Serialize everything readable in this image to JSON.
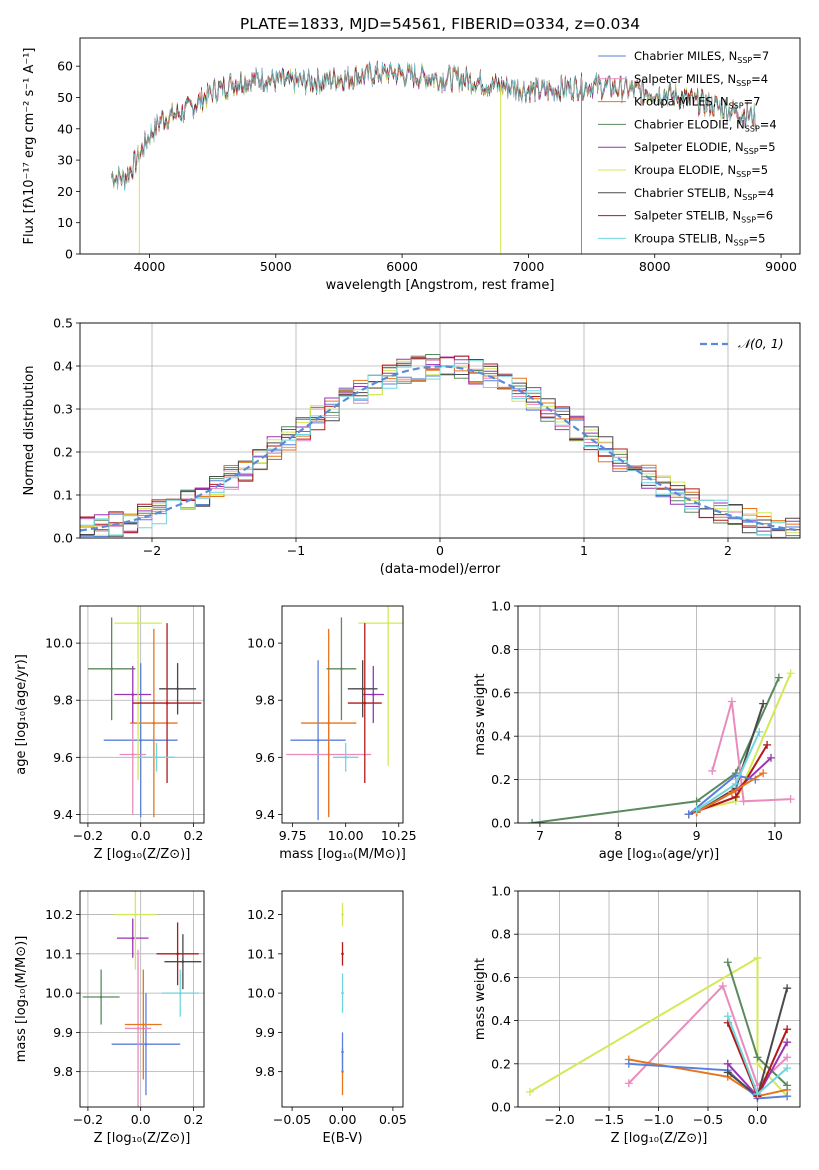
{
  "title": "PLATE=1833, MJD=54561, FIBERID=0334, z=0.034",
  "colors": {
    "Chabrier MILES": "#5b80db",
    "Salpeter MILES": "#e98bbd",
    "Kroupa MILES": "#e6751d",
    "Chabrier ELODIE": "#5b8a5e",
    "Salpeter ELODIE": "#9b33b5",
    "Kroupa ELODIE": "#d6e855",
    "Chabrier STELIB": "#4a4a4a",
    "Salpeter STELIB": "#b21a1a",
    "Kroupa STELIB": "#6fd6dd",
    "normal_curve": "#5b8bd8",
    "grid": "#b0b0b0"
  },
  "chart_data": [
    {
      "id": "spectrum",
      "type": "line",
      "xlabel": "wavelength [Angstrom, rest frame]",
      "ylabel": "Flux [fλ10⁻¹⁷ erg cm⁻² s⁻¹ A⁻¹]",
      "xlim": [
        3450,
        9150
      ],
      "ylim": [
        0,
        69
      ],
      "xticks": [
        "4000",
        "5000",
        "6000",
        "7000",
        "8000",
        "9000"
      ],
      "yticks": [
        "0",
        "10",
        "20",
        "30",
        "40",
        "50",
        "60"
      ],
      "legend": "top-right",
      "legend_entries": [
        {
          "name": "Chabrier MILES",
          "n": "7"
        },
        {
          "name": "Salpeter MILES",
          "n": "4"
        },
        {
          "name": "Kroupa MILES",
          "n": "7"
        },
        {
          "name": "Chabrier ELODIE",
          "n": "4"
        },
        {
          "name": "Salpeter ELODIE",
          "n": "5"
        },
        {
          "name": "Kroupa ELODIE",
          "n": "5"
        },
        {
          "name": "Chabrier STELIB",
          "n": "4"
        },
        {
          "name": "Salpeter STELIB",
          "n": "6"
        },
        {
          "name": "Kroupa STELIB",
          "n": "5"
        }
      ],
      "continuum": [
        [
          3700,
          25
        ],
        [
          3800,
          24
        ],
        [
          3900,
          30
        ],
        [
          4000,
          38
        ],
        [
          4100,
          43
        ],
        [
          4300,
          46
        ],
        [
          4500,
          52
        ],
        [
          4700,
          55
        ],
        [
          4900,
          56
        ],
        [
          5100,
          55
        ],
        [
          5300,
          55
        ],
        [
          5500,
          56
        ],
        [
          5700,
          57
        ],
        [
          5900,
          58
        ],
        [
          6100,
          57
        ],
        [
          6300,
          56
        ],
        [
          6500,
          56
        ],
        [
          6700,
          54
        ],
        [
          6900,
          53
        ],
        [
          7100,
          52
        ],
        [
          7300,
          53
        ],
        [
          7500,
          54
        ],
        [
          7700,
          53
        ],
        [
          7900,
          52
        ],
        [
          8100,
          51
        ],
        [
          8300,
          49
        ],
        [
          8500,
          47
        ],
        [
          8700,
          45
        ],
        [
          8800,
          44
        ]
      ],
      "drops": [
        {
          "series": "Kroupa ELODIE",
          "x": 3920,
          "to": 0
        },
        {
          "series": "Kroupa ELODIE",
          "x": 6780,
          "to": 0
        },
        {
          "series": "Kroupa MILES",
          "x": 7420,
          "to": 0
        }
      ],
      "grid": false
    },
    {
      "id": "residuals",
      "type": "bar",
      "xlabel": "(data-model)/error",
      "ylabel": "Normed distribution",
      "xlim": [
        -2.5,
        2.5
      ],
      "ylim": [
        0,
        0.5
      ],
      "xticks": [
        "−2",
        "−1",
        "0",
        "1",
        "2"
      ],
      "yticks": [
        "0.0",
        "0.1",
        "0.2",
        "0.3",
        "0.4",
        "0.5"
      ],
      "bin_width": 0.1,
      "legend_label": "𝒩(0, 1)",
      "grid": true
    },
    {
      "id": "age_vs_Z",
      "type": "scatter",
      "xlabel": "Z [log₁₀(Z/Z⊙)]",
      "ylabel": "age  [log₁₀(age/yr)]",
      "xlim": [
        -0.23,
        0.24
      ],
      "ylim": [
        9.37,
        10.13
      ],
      "xticks": [
        "−0.2",
        "0.0",
        "0.2"
      ],
      "yticks": [
        "9.4",
        "9.6",
        "9.8",
        "10.0"
      ],
      "points": [
        {
          "series": "Chabrier MILES",
          "x": 0.0,
          "xerr": 0.14,
          "y": 9.66,
          "yerr": 0.27
        },
        {
          "series": "Salpeter MILES",
          "x": -0.03,
          "xerr": 0.05,
          "y": 9.61,
          "yerr": 0.21
        },
        {
          "series": "Kroupa MILES",
          "x": 0.05,
          "xerr": 0.09,
          "y": 9.72,
          "yerr": 0.33
        },
        {
          "series": "Chabrier ELODIE",
          "x": -0.11,
          "xerr": 0.09,
          "y": 9.91,
          "yerr": 0.18
        },
        {
          "series": "Salpeter ELODIE",
          "x": -0.03,
          "xerr": 0.07,
          "y": 9.82,
          "yerr": 0.1
        },
        {
          "series": "Kroupa ELODIE",
          "x": -0.01,
          "xerr": 0.09,
          "y": 10.07,
          "yerr": 0.55
        },
        {
          "series": "Chabrier STELIB",
          "x": 0.14,
          "xerr": 0.07,
          "y": 9.84,
          "yerr": 0.09
        },
        {
          "series": "Salpeter STELIB",
          "x": 0.1,
          "xerr": 0.13,
          "y": 9.79,
          "yerr": 0.28
        },
        {
          "series": "Kroupa STELIB",
          "x": 0.06,
          "xerr": 0.07,
          "y": 9.6,
          "yerr": 0.05
        }
      ],
      "grid": true
    },
    {
      "id": "age_vs_mass",
      "type": "scatter",
      "xlabel": "mass [log₁₀(M/M⊙)]",
      "ylabel": "",
      "xlim": [
        9.7,
        10.27
      ],
      "ylim": [
        9.37,
        10.13
      ],
      "xticks": [
        "9.75",
        "10.00",
        "10.25"
      ],
      "yticks": [
        "9.4",
        "9.6",
        "9.8",
        "10.0"
      ],
      "points": [
        {
          "series": "Chabrier MILES",
          "x": 9.87,
          "xerr": 0.13,
          "y": 9.66,
          "yerr": 0.28
        },
        {
          "series": "Salpeter MILES",
          "x": 9.92,
          "xerr": 0.2,
          "y": 9.61,
          "yerr": 0.21
        },
        {
          "series": "Kroupa MILES",
          "x": 9.92,
          "xerr": 0.13,
          "y": 9.72,
          "yerr": 0.33
        },
        {
          "series": "Chabrier ELODIE",
          "x": 9.98,
          "xerr": 0.07,
          "y": 9.91,
          "yerr": 0.18
        },
        {
          "series": "Salpeter ELODIE",
          "x": 10.13,
          "xerr": 0.05,
          "y": 9.82,
          "yerr": 0.1
        },
        {
          "series": "Kroupa ELODIE",
          "x": 10.2,
          "xerr": 0.14,
          "y": 10.07,
          "yerr": 0.5
        },
        {
          "series": "Chabrier STELIB",
          "x": 10.08,
          "xerr": 0.07,
          "y": 9.84,
          "yerr": 0.1
        },
        {
          "series": "Salpeter STELIB",
          "x": 10.09,
          "xerr": 0.08,
          "y": 9.79,
          "yerr": 0.28
        },
        {
          "series": "Kroupa STELIB",
          "x": 10.0,
          "xerr": 0.06,
          "y": 9.6,
          "yerr": 0.05
        }
      ],
      "grid": false
    },
    {
      "id": "mass_weight_vs_age",
      "type": "line",
      "xlabel": "age  [log₁₀(age/yr)]",
      "ylabel": "mass weight",
      "xlim": [
        6.72,
        10.32
      ],
      "ylim": [
        0,
        1
      ],
      "xticks": [
        "7",
        "8",
        "9",
        "10"
      ],
      "yticks": [
        "0.0",
        "0.2",
        "0.4",
        "0.6",
        "0.8",
        "1.0"
      ],
      "series": [
        {
          "name": "Chabrier ELODIE",
          "points": [
            [
              6.9,
              0.0
            ],
            [
              9.0,
              0.1
            ],
            [
              9.5,
              0.23
            ],
            [
              10.05,
              0.67
            ]
          ]
        },
        {
          "name": "Salpeter MILES",
          "points": [
            [
              9.2,
              0.24
            ],
            [
              9.45,
              0.56
            ],
            [
              9.6,
              0.1
            ],
            [
              10.2,
              0.11
            ]
          ]
        },
        {
          "name": "Kroupa ELODIE",
          "points": [
            [
              9.0,
              0.06
            ],
            [
              9.5,
              0.1
            ],
            [
              10.2,
              0.69
            ]
          ]
        },
        {
          "name": "Chabrier STELIB",
          "points": [
            [
              9.0,
              0.05
            ],
            [
              9.5,
              0.16
            ],
            [
              9.85,
              0.55
            ]
          ]
        },
        {
          "name": "Salpeter ELODIE",
          "points": [
            [
              9.0,
              0.05
            ],
            [
              9.5,
              0.15
            ],
            [
              9.95,
              0.3
            ]
          ]
        },
        {
          "name": "Salpeter STELIB",
          "points": [
            [
              8.9,
              0.04
            ],
            [
              9.5,
              0.12
            ],
            [
              9.9,
              0.36
            ]
          ]
        },
        {
          "name": "Chabrier MILES",
          "points": [
            [
              8.9,
              0.04
            ],
            [
              9.5,
              0.22
            ],
            [
              9.75,
              0.2
            ]
          ]
        },
        {
          "name": "Kroupa MILES",
          "points": [
            [
              9.0,
              0.05
            ],
            [
              9.45,
              0.14
            ],
            [
              9.85,
              0.23
            ]
          ]
        },
        {
          "name": "Kroupa STELIB",
          "points": [
            [
              9.0,
              0.06
            ],
            [
              9.5,
              0.18
            ],
            [
              9.8,
              0.42
            ]
          ]
        }
      ],
      "grid": true
    },
    {
      "id": "mass_vs_Z",
      "type": "scatter",
      "xlabel": "Z [log₁₀(Z/Z⊙)]",
      "ylabel": "mass [log₁₀(M/M⊙)]",
      "xlim": [
        -0.23,
        0.24
      ],
      "ylim": [
        9.71,
        10.26
      ],
      "xticks": [
        "−0.2",
        "0.0",
        "0.2"
      ],
      "yticks": [
        "9.8",
        "9.9",
        "10.0",
        "10.1",
        "10.2"
      ],
      "points": [
        {
          "series": "Chabrier MILES",
          "x": 0.02,
          "xerr": 0.13,
          "y": 9.87,
          "yerr": 0.13
        },
        {
          "series": "Salpeter MILES",
          "x": -0.01,
          "xerr": 0.05,
          "y": 9.91,
          "yerr": 0.2
        },
        {
          "series": "Kroupa MILES",
          "x": 0.01,
          "xerr": 0.07,
          "y": 9.92,
          "yerr": 0.14
        },
        {
          "series": "Chabrier ELODIE",
          "x": -0.15,
          "xerr": 0.07,
          "y": 9.99,
          "yerr": 0.07
        },
        {
          "series": "Salpeter ELODIE",
          "x": -0.03,
          "xerr": 0.06,
          "y": 10.14,
          "yerr": 0.05
        },
        {
          "series": "Kroupa ELODIE",
          "x": -0.02,
          "xerr": 0.08,
          "y": 10.2,
          "yerr": 0.14
        },
        {
          "series": "Chabrier STELIB",
          "x": 0.16,
          "xerr": 0.07,
          "y": 10.08,
          "yerr": 0.07
        },
        {
          "series": "Salpeter STELIB",
          "x": 0.14,
          "xerr": 0.08,
          "y": 10.1,
          "yerr": 0.08
        },
        {
          "series": "Kroupa STELIB",
          "x": 0.15,
          "xerr": 0.07,
          "y": 10.0,
          "yerr": 0.06
        }
      ],
      "grid": true
    },
    {
      "id": "mass_vs_ebv",
      "type": "scatter",
      "xlabel": "E(B-V)",
      "ylabel": "",
      "xlim": [
        -0.06,
        0.06
      ],
      "ylim": [
        9.71,
        10.26
      ],
      "xticks": [
        "−0.05",
        "0.00",
        "0.05"
      ],
      "yticks": [
        "9.8",
        "9.9",
        "10.0",
        "10.1",
        "10.2"
      ],
      "points": [
        {
          "series": "Kroupa ELODIE",
          "x": 0.0,
          "y": 10.2,
          "yerr": 0.03
        },
        {
          "series": "Salpeter STELIB",
          "x": 0.0,
          "y": 10.1,
          "yerr": 0.03
        },
        {
          "series": "Kroupa STELIB",
          "x": 0.0,
          "y": 10.0,
          "yerr": 0.05
        },
        {
          "series": "Kroupa MILES",
          "x": 0.0,
          "y": 9.8,
          "yerr": 0.06
        },
        {
          "series": "Chabrier MILES",
          "x": 0.0,
          "y": 9.85,
          "yerr": 0.05
        }
      ],
      "grid": false
    },
    {
      "id": "mass_weight_vs_Z",
      "type": "line",
      "xlabel": "Z [log₁₀(Z/Z⊙)]",
      "ylabel": "mass weight",
      "xlim": [
        -2.42,
        0.43
      ],
      "ylim": [
        0,
        1
      ],
      "xticks": [
        "−2.0",
        "−1.5",
        "−1.0",
        "−0.5",
        "0.0"
      ],
      "yticks": [
        "0.0",
        "0.2",
        "0.4",
        "0.6",
        "0.8",
        "1.0"
      ],
      "series": [
        {
          "name": "Kroupa ELODIE",
          "points": [
            [
              -2.3,
              0.07
            ],
            [
              0.0,
              0.69
            ],
            [
              0.0,
              0.2
            ],
            [
              0.3,
              0.05
            ]
          ]
        },
        {
          "name": "Salpeter MILES",
          "points": [
            [
              -1.3,
              0.11
            ],
            [
              -0.35,
              0.56
            ],
            [
              0.0,
              0.1
            ],
            [
              0.3,
              0.23
            ]
          ]
        },
        {
          "name": "Kroupa MILES",
          "points": [
            [
              -1.3,
              0.22
            ],
            [
              -0.3,
              0.14
            ],
            [
              0.0,
              0.05
            ],
            [
              0.3,
              0.08
            ]
          ]
        },
        {
          "name": "Chabrier MILES",
          "points": [
            [
              -1.3,
              0.2
            ],
            [
              -0.3,
              0.17
            ],
            [
              0.0,
              0.04
            ],
            [
              0.3,
              0.05
            ]
          ]
        },
        {
          "name": "Chabrier ELODIE",
          "points": [
            [
              -0.3,
              0.67
            ],
            [
              0.0,
              0.23
            ],
            [
              0.3,
              0.1
            ]
          ]
        },
        {
          "name": "Chabrier STELIB",
          "points": [
            [
              -0.3,
              0.16
            ],
            [
              0.0,
              0.05
            ],
            [
              0.3,
              0.55
            ]
          ]
        },
        {
          "name": "Salpeter ELODIE",
          "points": [
            [
              -0.3,
              0.2
            ],
            [
              0.0,
              0.05
            ],
            [
              0.3,
              0.3
            ]
          ]
        },
        {
          "name": "Salpeter STELIB",
          "points": [
            [
              -0.3,
              0.39
            ],
            [
              0.0,
              0.05
            ],
            [
              0.3,
              0.36
            ]
          ]
        },
        {
          "name": "Kroupa STELIB",
          "points": [
            [
              -0.3,
              0.42
            ],
            [
              0.0,
              0.06
            ],
            [
              0.3,
              0.18
            ]
          ]
        }
      ],
      "grid": true
    }
  ]
}
